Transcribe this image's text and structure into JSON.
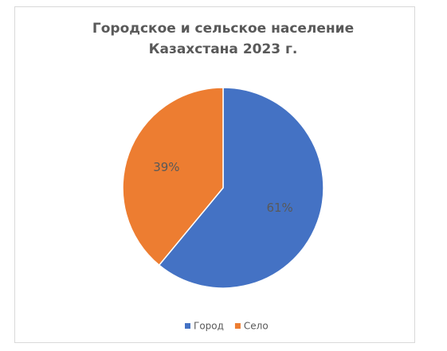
{
  "chart_data": {
    "type": "pie",
    "title": [
      "Городское и сельское население",
      "Казахстана 2023 г."
    ],
    "categories": [
      "Город",
      "Село"
    ],
    "values": [
      61,
      39
    ],
    "value_labels": [
      "61%",
      "39%"
    ],
    "colors": [
      "#4472c4",
      "#ed7d31"
    ],
    "legend": "bottom"
  }
}
